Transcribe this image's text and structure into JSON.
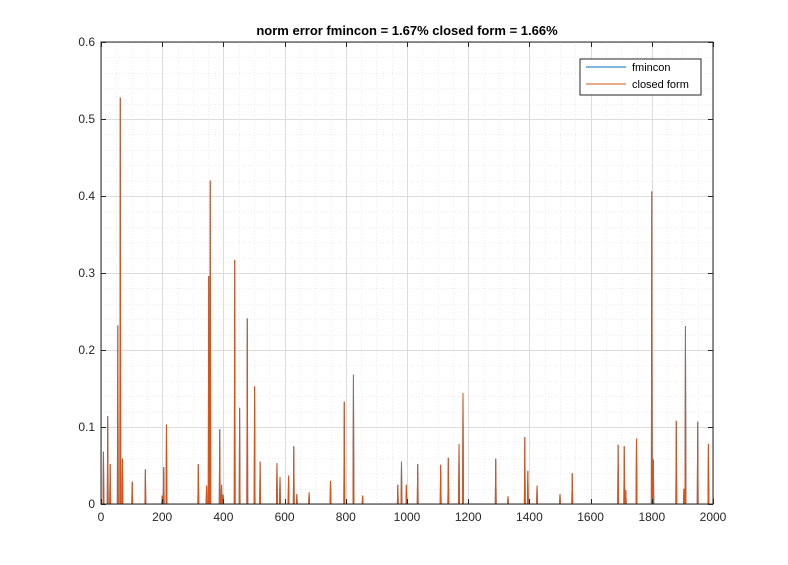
{
  "colors": {
    "background": "#ffffff",
    "axis": "#262626",
    "grid_major": "#dcdcdc",
    "grid_minor": "#ececec",
    "fmincon": "#0072BD",
    "closed_form": "#D95319"
  },
  "chart_data": {
    "type": "line",
    "title": "norm error fmincon  = 1.67%  closed form = 1.66%",
    "xlabel": "",
    "ylabel": "",
    "xlim": [
      0,
      2000
    ],
    "ylim": [
      0,
      0.6
    ],
    "x_ticks": [
      0,
      200,
      400,
      600,
      800,
      1000,
      1200,
      1400,
      1600,
      1800,
      2000
    ],
    "y_ticks": [
      0,
      0.1,
      0.2,
      0.3,
      0.4,
      0.5,
      0.6
    ],
    "x_tick_labels": [
      "0",
      "200",
      "400",
      "600",
      "800",
      "1000",
      "1200",
      "1400",
      "1600",
      "1800",
      "2000"
    ],
    "y_tick_labels": [
      "0",
      "0.1",
      "0.2",
      "0.3",
      "0.4",
      "0.5",
      "0.6"
    ],
    "grid": true,
    "minor_grid": true,
    "legend_position": "top-right",
    "series": [
      {
        "name": "fmincon",
        "color": "#0072BD",
        "spikes": [
          [
            8,
            0.068
          ],
          [
            22,
            0.114
          ],
          [
            30,
            0.052
          ],
          [
            55,
            0.232
          ],
          [
            63,
            0.528
          ],
          [
            70,
            0.059
          ],
          [
            102,
            0.029
          ],
          [
            145,
            0.045
          ],
          [
            200,
            0.011
          ],
          [
            205,
            0.048
          ],
          [
            214,
            0.103
          ],
          [
            318,
            0.052
          ],
          [
            345,
            0.024
          ],
          [
            352,
            0.296
          ],
          [
            357,
            0.42
          ],
          [
            388,
            0.097
          ],
          [
            394,
            0.025
          ],
          [
            399,
            0.012
          ],
          [
            437,
            0.317
          ],
          [
            453,
            0.125
          ],
          [
            478,
            0.241
          ],
          [
            502,
            0.153
          ],
          [
            520,
            0.055
          ],
          [
            575,
            0.053
          ],
          [
            585,
            0.035
          ],
          [
            613,
            0.037
          ],
          [
            630,
            0.075
          ],
          [
            640,
            0.013
          ],
          [
            680,
            0.015
          ],
          [
            750,
            0.03
          ],
          [
            795,
            0.133
          ],
          [
            825,
            0.168
          ],
          [
            855,
            0.011
          ],
          [
            970,
            0.025
          ],
          [
            982,
            0.055
          ],
          [
            998,
            0.025
          ],
          [
            1035,
            0.052
          ],
          [
            1110,
            0.051
          ],
          [
            1135,
            0.06
          ],
          [
            1170,
            0.078
          ],
          [
            1183,
            0.144
          ],
          [
            1290,
            0.059
          ],
          [
            1330,
            0.01
          ],
          [
            1385,
            0.087
          ],
          [
            1395,
            0.043
          ],
          [
            1425,
            0.024
          ],
          [
            1500,
            0.013
          ],
          [
            1540,
            0.04
          ],
          [
            1690,
            0.077
          ],
          [
            1710,
            0.075
          ],
          [
            1715,
            0.018
          ],
          [
            1750,
            0.085
          ],
          [
            1800,
            0.406
          ],
          [
            1805,
            0.058
          ],
          [
            1880,
            0.108
          ],
          [
            1905,
            0.02
          ],
          [
            1910,
            0.231
          ],
          [
            1950,
            0.107
          ],
          [
            1985,
            0.078
          ]
        ]
      },
      {
        "name": "closed form",
        "color": "#D95319",
        "spikes": [
          [
            8,
            0.068
          ],
          [
            22,
            0.114
          ],
          [
            30,
            0.052
          ],
          [
            55,
            0.232
          ],
          [
            63,
            0.528
          ],
          [
            70,
            0.059
          ],
          [
            102,
            0.029
          ],
          [
            145,
            0.045
          ],
          [
            200,
            0.011
          ],
          [
            205,
            0.048
          ],
          [
            214,
            0.103
          ],
          [
            318,
            0.052
          ],
          [
            345,
            0.024
          ],
          [
            352,
            0.296
          ],
          [
            357,
            0.42
          ],
          [
            388,
            0.097
          ],
          [
            394,
            0.025
          ],
          [
            399,
            0.012
          ],
          [
            437,
            0.317
          ],
          [
            453,
            0.125
          ],
          [
            478,
            0.241
          ],
          [
            502,
            0.153
          ],
          [
            520,
            0.055
          ],
          [
            575,
            0.053
          ],
          [
            585,
            0.035
          ],
          [
            613,
            0.037
          ],
          [
            630,
            0.075
          ],
          [
            640,
            0.013
          ],
          [
            680,
            0.015
          ],
          [
            750,
            0.03
          ],
          [
            795,
            0.133
          ],
          [
            825,
            0.168
          ],
          [
            855,
            0.011
          ],
          [
            970,
            0.025
          ],
          [
            982,
            0.055
          ],
          [
            998,
            0.025
          ],
          [
            1035,
            0.052
          ],
          [
            1110,
            0.051
          ],
          [
            1135,
            0.06
          ],
          [
            1170,
            0.078
          ],
          [
            1183,
            0.144
          ],
          [
            1290,
            0.059
          ],
          [
            1330,
            0.01
          ],
          [
            1385,
            0.087
          ],
          [
            1395,
            0.043
          ],
          [
            1425,
            0.024
          ],
          [
            1500,
            0.013
          ],
          [
            1540,
            0.04
          ],
          [
            1690,
            0.077
          ],
          [
            1710,
            0.075
          ],
          [
            1715,
            0.018
          ],
          [
            1750,
            0.085
          ],
          [
            1800,
            0.406
          ],
          [
            1805,
            0.058
          ],
          [
            1880,
            0.108
          ],
          [
            1905,
            0.02
          ],
          [
            1910,
            0.231
          ],
          [
            1950,
            0.107
          ],
          [
            1985,
            0.078
          ]
        ]
      }
    ]
  }
}
